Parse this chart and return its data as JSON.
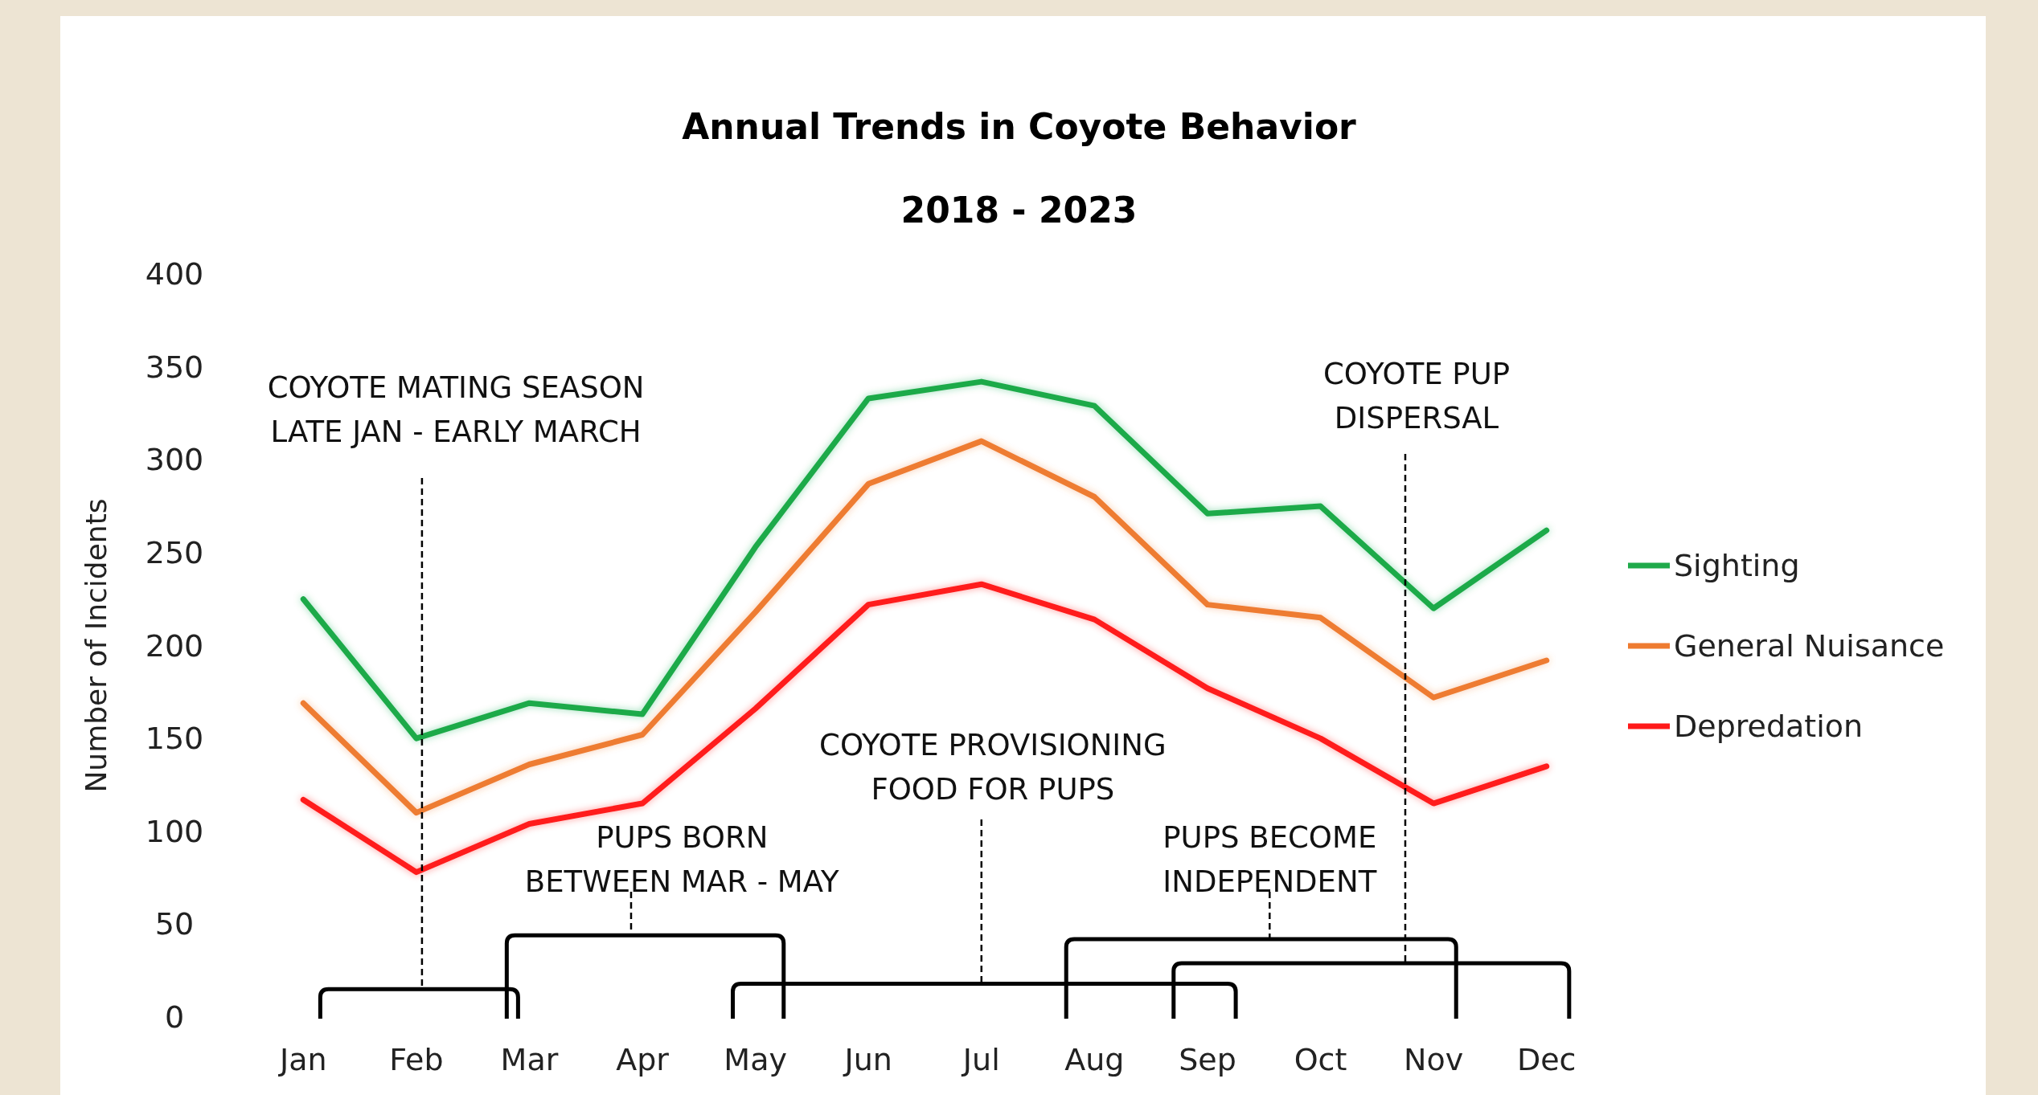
{
  "chart_data": {
    "type": "line",
    "title": "Annual Trends in Coyote Behavior\n2018 - 2023",
    "ylabel": "Number of Incidents",
    "categories": [
      "Jan",
      "Feb",
      "Mar",
      "Apr",
      "May",
      "Jun",
      "Jul",
      "Aug",
      "Sep",
      "Oct",
      "Nov",
      "Dec"
    ],
    "series": [
      {
        "name": "Sighting",
        "color": "#1faa4a",
        "values": [
          225,
          150,
          169,
          163,
          253,
          333,
          342,
          329,
          271,
          275,
          220,
          262
        ]
      },
      {
        "name": "General Nuisance",
        "color": "#ee7b30",
        "values": [
          169,
          110,
          136,
          152,
          218,
          287,
          310,
          280,
          222,
          215,
          172,
          192
        ]
      },
      {
        "name": "Depredation",
        "color": "#ff1a1a",
        "values": [
          117,
          78,
          104,
          115,
          166,
          222,
          233,
          214,
          177,
          150,
          115,
          135
        ]
      }
    ],
    "ylim": [
      0,
      400
    ],
    "yticks": [
      0,
      50,
      100,
      150,
      200,
      250,
      300,
      350,
      400
    ],
    "grid": false,
    "legend": "right",
    "marker": "none",
    "line_style": "solid",
    "annotations": [
      "COYOTE MATING SEASON\nLATE JAN - EARLY MARCH",
      "PUPS BORN\nBETWEEN MAR - MAY",
      "COYOTE PROVISIONING\nFOOD FOR PUPS",
      "PUPS BECOME\nINDEPENDENT",
      "COYOTE PUP\nDISPERSAL"
    ]
  }
}
